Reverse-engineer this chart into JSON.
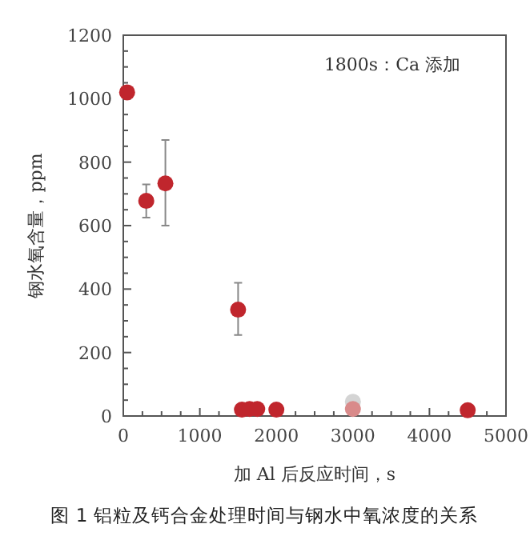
{
  "chart_data": {
    "type": "scatter",
    "title": "图 1 铝粒及钙合金处理时间与钢水中氧浓度的关系",
    "xlabel": "加 Al 后反应时间，s",
    "ylabel": "钢水氧含量，ppm",
    "annotations": [
      "1800s：Ca 添加"
    ],
    "x": [
      50,
      300,
      550,
      1500,
      1550,
      1650,
      1750,
      2000,
      3000,
      3000,
      4500
    ],
    "values": [
      1020,
      678,
      733,
      335,
      20,
      22,
      22,
      20,
      45,
      22,
      18
    ],
    "errors": [
      null,
      [
        625,
        730
      ],
      [
        600,
        870
      ],
      [
        255,
        420
      ],
      null,
      null,
      null,
      null,
      null,
      null,
      null
    ],
    "colors": [
      "#c0262d",
      "#c0262d",
      "#c0262d",
      "#c0262d",
      "#c0262d",
      "#c0262d",
      "#c0262d",
      "#c0262d",
      "#d4d4d4",
      "#d98a8a",
      "#c0262d"
    ],
    "marker": "circle",
    "xlim": [
      0,
      5000
    ],
    "ylim": [
      0,
      1200
    ],
    "xticks": [
      0,
      {
        "value": 250,
        "label": null
      },
      {
        "value": 500,
        "label": null
      },
      {
        "value": 750,
        "label": null
      },
      1000,
      {
        "value": 1250,
        "label": null
      },
      {
        "value": 1500,
        "label": null
      },
      {
        "value": 1750,
        "label": null
      },
      2000,
      {
        "value": 2250,
        "label": null
      },
      {
        "value": 2500,
        "label": null
      },
      {
        "value": 2750,
        "label": null
      },
      3000,
      {
        "value": 3250,
        "label": null
      },
      {
        "value": 3500,
        "label": null
      },
      {
        "value": 3750,
        "label": null
      },
      4000,
      {
        "value": 4250,
        "label": null
      },
      {
        "value": 4500,
        "label": null
      },
      {
        "value": 4750,
        "label": null
      },
      5000
    ],
    "yticks": [
      0,
      {
        "value": 50,
        "label": null
      },
      {
        "value": 100,
        "label": null
      },
      {
        "value": 150,
        "label": null
      },
      200,
      {
        "value": 250,
        "label": null
      },
      {
        "value": 300,
        "label": null
      },
      {
        "value": 350,
        "label": null
      },
      400,
      {
        "value": 450,
        "label": null
      },
      {
        "value": 500,
        "label": null
      },
      {
        "value": 550,
        "label": null
      },
      600,
      {
        "value": 650,
        "label": null
      },
      {
        "value": 700,
        "label": null
      },
      {
        "value": 750,
        "label": null
      },
      800,
      {
        "value": 850,
        "label": null
      },
      {
        "value": 900,
        "label": null
      },
      {
        "value": 950,
        "label": null
      },
      1000,
      {
        "value": 1050,
        "label": null
      },
      {
        "value": 1100,
        "label": null
      },
      {
        "value": 1150,
        "label": null
      },
      1200
    ],
    "grid": false
  }
}
